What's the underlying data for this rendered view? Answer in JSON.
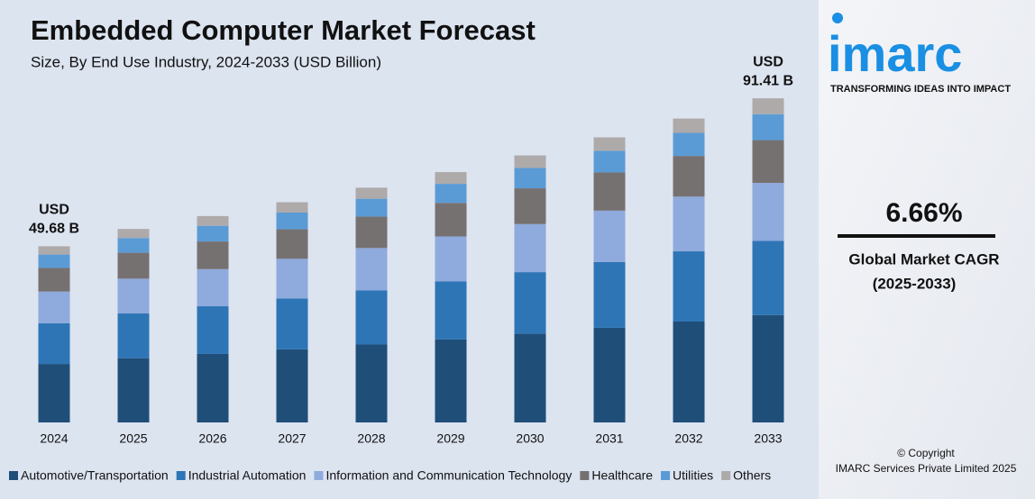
{
  "chart_data": {
    "type": "stacked-bar",
    "title": "Embedded Computer Market Forecast",
    "subtitle": "Size, By End Use Industry, 2024-2033 (USD Billion)",
    "categories": [
      "2024",
      "2025",
      "2026",
      "2027",
      "2028",
      "2029",
      "2030",
      "2031",
      "2032",
      "2033"
    ],
    "series": [
      {
        "name": "Automotive/Transportation",
        "color": "#1f4e79",
        "values": [
          16.49,
          18.12,
          19.32,
          20.62,
          21.98,
          23.44,
          25.0,
          26.69,
          28.45,
          30.26
        ]
      },
      {
        "name": "Industrial Automation",
        "color": "#2e75b6",
        "values": [
          11.48,
          12.61,
          13.44,
          14.35,
          15.29,
          16.31,
          17.39,
          18.57,
          19.8,
          20.93
        ]
      },
      {
        "name": "Information and Communication Technology",
        "color": "#8faadc",
        "values": [
          8.94,
          9.82,
          10.48,
          11.18,
          11.92,
          12.71,
          13.55,
          14.47,
          15.43,
          16.36
        ]
      },
      {
        "name": "Healthcare",
        "color": "#767171",
        "values": [
          6.66,
          7.31,
          7.8,
          8.32,
          8.87,
          9.46,
          10.09,
          10.77,
          11.48,
          12.07
        ]
      },
      {
        "name": "Utilities",
        "color": "#5b9bd5",
        "values": [
          3.78,
          4.15,
          4.42,
          4.72,
          5.03,
          5.37,
          5.72,
          6.11,
          6.51,
          7.31
        ]
      },
      {
        "name": "Others",
        "color": "#aeaaaa",
        "values": [
          2.33,
          2.56,
          2.74,
          2.91,
          3.11,
          3.31,
          3.55,
          3.79,
          4.03,
          4.48
        ]
      }
    ],
    "ylim": [
      0,
      95
    ],
    "annotations": [
      {
        "category": "2024",
        "value": 49.68,
        "lines": [
          "USD",
          "49.68 B"
        ]
      },
      {
        "category": "2033",
        "value": 91.41,
        "lines": [
          "USD",
          "91.41 B"
        ]
      }
    ],
    "legend": "bottom"
  },
  "side_panel": {
    "logo": "imarc",
    "tagline": "TRANSFORMING IDEAS INTO IMPACT",
    "cagr": "6.66%",
    "cagr_label": "Global Market CAGR",
    "cagr_period": "(2025-2033)",
    "copyright": "© Copyright",
    "company": "IMARC Services Private Limited 2025"
  }
}
